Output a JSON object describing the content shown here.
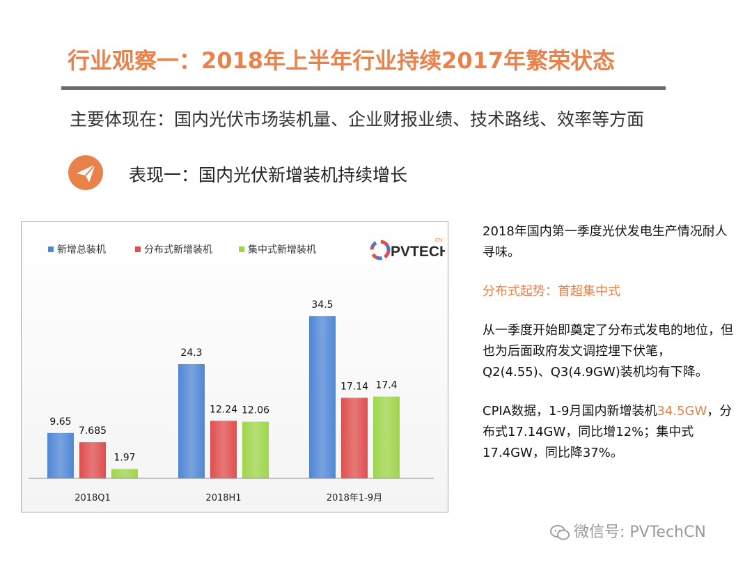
{
  "header": {
    "title": "行业观察一：2018年上半年行业持续2017年繁荣状态",
    "subtitle": "主要体现在：国内光伏市场装机量、企业财报业绩、技术路线、效率等方面",
    "point": "表现一：国内光伏新增装机持续增长"
  },
  "logo": {
    "text": "PVTECH",
    "suffix": ".CN"
  },
  "chart_data": {
    "type": "bar",
    "categories": [
      "2018Q1",
      "2018H1",
      "2018年1-9月"
    ],
    "series": [
      {
        "name": "新增总装机",
        "values": [
          9.65,
          24.3,
          34.5
        ],
        "labels": [
          "9.65",
          "24.3",
          "34.5"
        ],
        "color": "#4f86d6"
      },
      {
        "name": "分布式新增装机",
        "values": [
          7.685,
          12.24,
          17.14
        ],
        "labels": [
          "7.685",
          "12.24",
          "17.14"
        ],
        "color": "#e04e4e"
      },
      {
        "name": "集中式新增装机",
        "values": [
          1.97,
          12.06,
          17.4
        ],
        "labels": [
          "1.97",
          "12.06",
          "17.4"
        ],
        "color": "#9ed64a"
      }
    ],
    "title": "",
    "xlabel": "",
    "ylabel": "",
    "ylim": [
      0,
      40
    ],
    "legend": "top-left",
    "grid": false
  },
  "side": {
    "p1": "2018年国内第一季度光伏发电生产情况耐人寻味。",
    "p2": "分布式起势：首超集中式",
    "p3": "从一季度开始即奠定了分布式发电的地位，但也为后面政府发文调控埋下伏笔，Q2(4.55)、Q3(4.9GW)装机均有下降。",
    "p4a": "CPIA数据，1-9月国内新增装机",
    "p4b": "34.5GW",
    "p4c": "，分布式17.14GW，同比增12%；集中式17.4GW，同比降37%。"
  },
  "footer": {
    "wechat": "微信号: PVTechCN"
  },
  "colors": {
    "accent": "#e8824a",
    "rule": "#6b6b6b"
  }
}
